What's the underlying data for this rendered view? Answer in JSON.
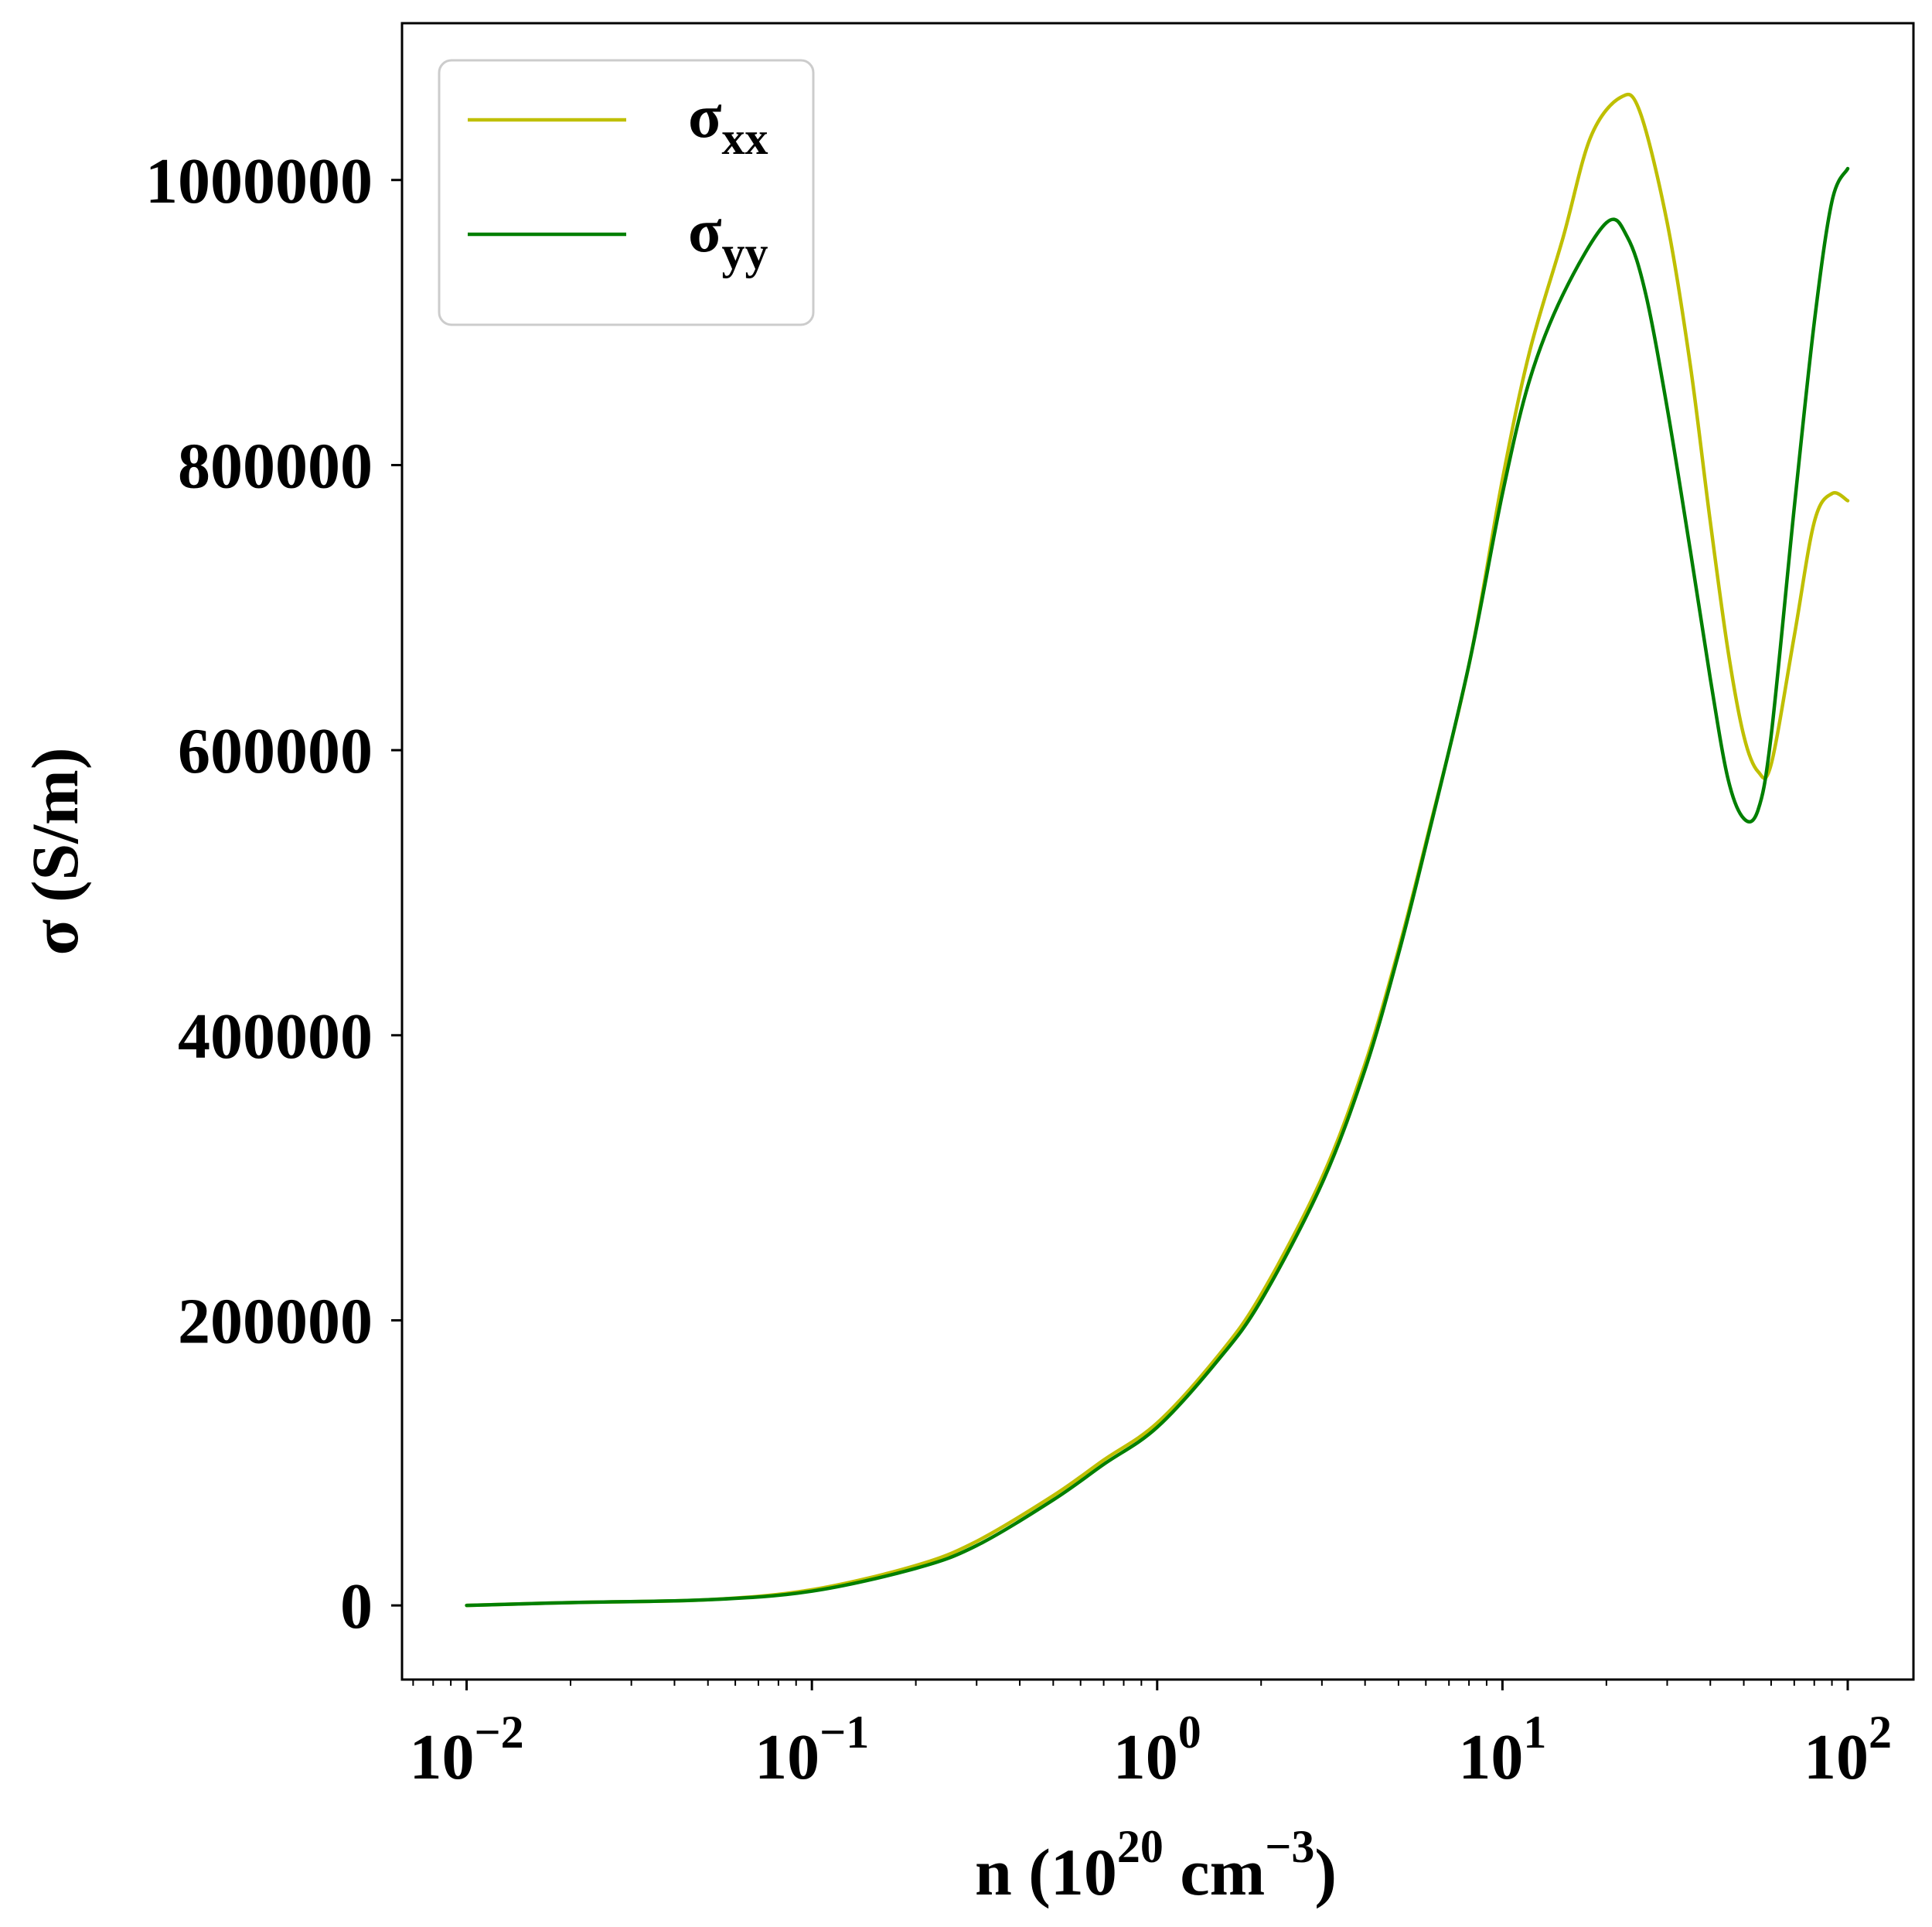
{
  "chart_data": {
    "type": "line",
    "x_scale": "log",
    "xlabel": {
      "base": "n (10",
      "exp1": "20",
      "mid": " cm",
      "exp2": "−3",
      "end": ")"
    },
    "ylabel": "σ (S/m)",
    "xlim": [
      0.0065,
      155
    ],
    "ylim": [
      -52000,
      1110000
    ],
    "x_ticks": [
      {
        "value": 0.01,
        "base": "10",
        "exp": "−2"
      },
      {
        "value": 0.1,
        "base": "10",
        "exp": "−1"
      },
      {
        "value": 1,
        "base": "10",
        "exp": "0"
      },
      {
        "value": 10,
        "base": "10",
        "exp": "1"
      },
      {
        "value": 100,
        "base": "10",
        "exp": "2"
      }
    ],
    "y_ticks": [
      {
        "value": 0,
        "label": "0"
      },
      {
        "value": 200000,
        "label": "200000"
      },
      {
        "value": 400000,
        "label": "400000"
      },
      {
        "value": 600000,
        "label": "600000"
      },
      {
        "value": 800000,
        "label": "800000"
      },
      {
        "value": 1000000,
        "label": "1000000"
      }
    ],
    "grid": false,
    "legend_position": "top-left",
    "series": [
      {
        "name": "σxx",
        "name_base": "σ",
        "name_sub": "xx",
        "color": "#bfbf00",
        "points": [
          [
            0.01,
            0
          ],
          [
            0.02,
            2000
          ],
          [
            0.05,
            4000
          ],
          [
            0.1,
            11000
          ],
          [
            0.2,
            28000
          ],
          [
            0.3,
            45000
          ],
          [
            0.5,
            77000
          ],
          [
            0.7,
            102000
          ],
          [
            1.0,
            128000
          ],
          [
            1.5,
            175000
          ],
          [
            2.0,
            218000
          ],
          [
            3.0,
            300000
          ],
          [
            4.0,
            380000
          ],
          [
            5.0,
            460000
          ],
          [
            6.0,
            535000
          ],
          [
            8.0,
            660000
          ],
          [
            10.0,
            790000
          ],
          [
            12.0,
            880000
          ],
          [
            15.0,
            960000
          ],
          [
            18.0,
            1030000
          ],
          [
            22.0,
            1058000
          ],
          [
            25.0,
            1048000
          ],
          [
            30.0,
            970000
          ],
          [
            35.0,
            870000
          ],
          [
            40.0,
            760000
          ],
          [
            45.0,
            670000
          ],
          [
            50.0,
            610000
          ],
          [
            55.0,
            585000
          ],
          [
            60.0,
            590000
          ],
          [
            70.0,
            680000
          ],
          [
            80.0,
            760000
          ],
          [
            90.0,
            780000
          ],
          [
            100.0,
            775000
          ]
        ]
      },
      {
        "name": "σyy",
        "name_base": "σ",
        "name_sub": "yy",
        "color": "#007f00",
        "points": [
          [
            0.01,
            0
          ],
          [
            0.02,
            2000
          ],
          [
            0.05,
            4000
          ],
          [
            0.1,
            10000
          ],
          [
            0.2,
            26000
          ],
          [
            0.3,
            42000
          ],
          [
            0.5,
            74000
          ],
          [
            0.7,
            99000
          ],
          [
            1.0,
            125000
          ],
          [
            1.5,
            172000
          ],
          [
            2.0,
            214000
          ],
          [
            3.0,
            296000
          ],
          [
            4.0,
            376000
          ],
          [
            5.0,
            457000
          ],
          [
            6.0,
            533000
          ],
          [
            8.0,
            660000
          ],
          [
            10.0,
            780000
          ],
          [
            12.0,
            860000
          ],
          [
            15.0,
            920000
          ],
          [
            20.0,
            970000
          ],
          [
            23.0,
            960000
          ],
          [
            26.0,
            920000
          ],
          [
            30.0,
            840000
          ],
          [
            35.0,
            740000
          ],
          [
            40.0,
            650000
          ],
          [
            45.0,
            580000
          ],
          [
            50.0,
            552000
          ],
          [
            55.0,
            558000
          ],
          [
            60.0,
            610000
          ],
          [
            70.0,
            770000
          ],
          [
            80.0,
            900000
          ],
          [
            90.0,
            985000
          ],
          [
            100.0,
            1008000
          ]
        ]
      }
    ]
  }
}
